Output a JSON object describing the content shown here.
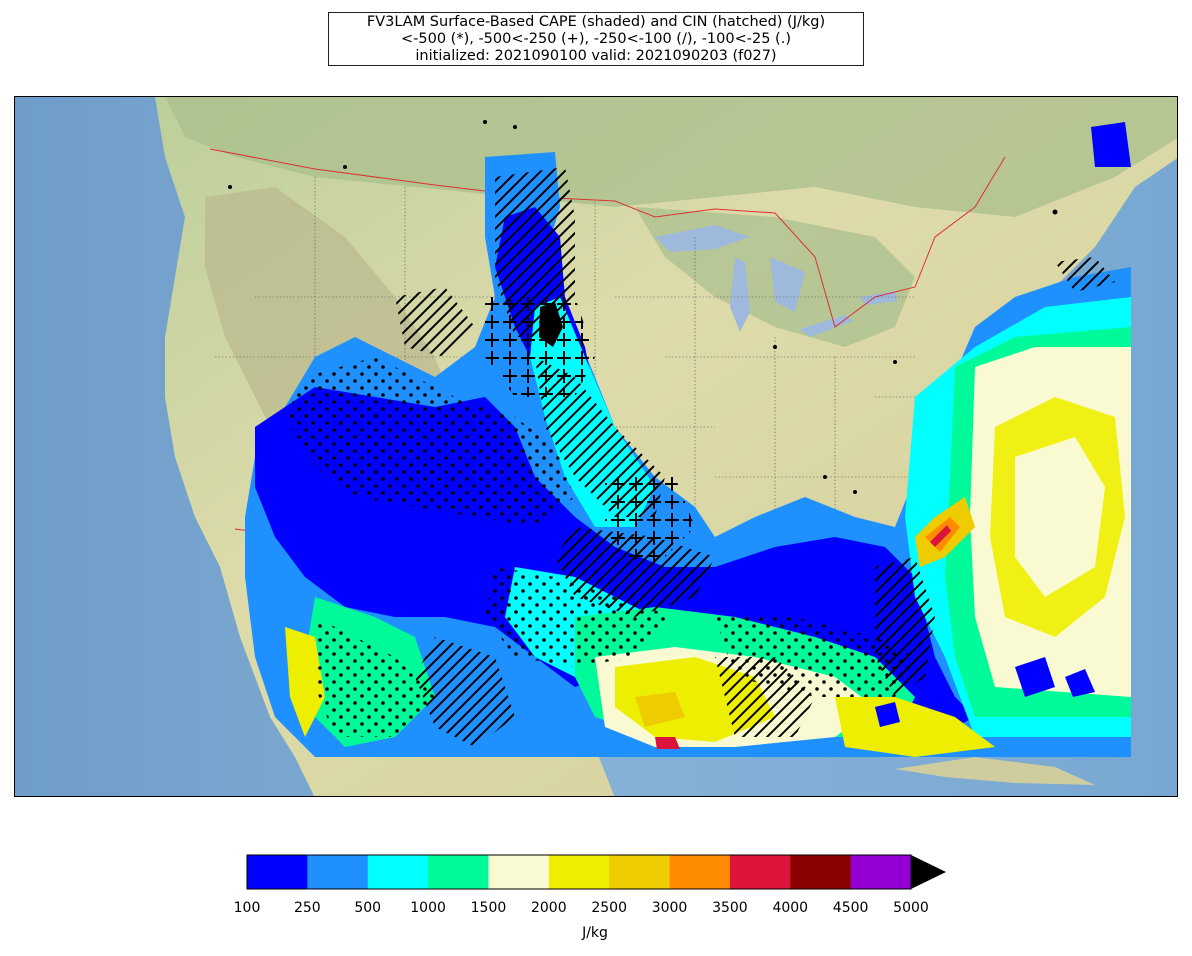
{
  "title": {
    "line1": "FV3LAM Surface-Based CAPE (shaded) and CIN (hatched) (J/kg)",
    "line2": "<-500 (*), -500<-250 (+), -250<-100 (/), -100<-25 (.)",
    "line3": "initialized: 2021090100 valid: 2021090203 (f027)"
  },
  "colorbar": {
    "label": "J/kg",
    "ticks": [
      "100",
      "250",
      "500",
      "1000",
      "1500",
      "2000",
      "2500",
      "3000",
      "3500",
      "4000",
      "4500",
      "5000"
    ],
    "colors": [
      "#0000ff",
      "#1e90ff",
      "#00ffff",
      "#00fa9a",
      "#fafad2",
      "#eeee00",
      "#eecc00",
      "#ff8c00",
      "#dc143c",
      "#8b0000",
      "#9400d3"
    ],
    "extend_color": "#000000"
  },
  "map": {
    "ocean_color": "#7fa9cf",
    "land_color": "#d9d6a8",
    "forest_color": "#a9c08f",
    "lake_color": "#9fb9dd",
    "border_color": "#e03030"
  }
}
